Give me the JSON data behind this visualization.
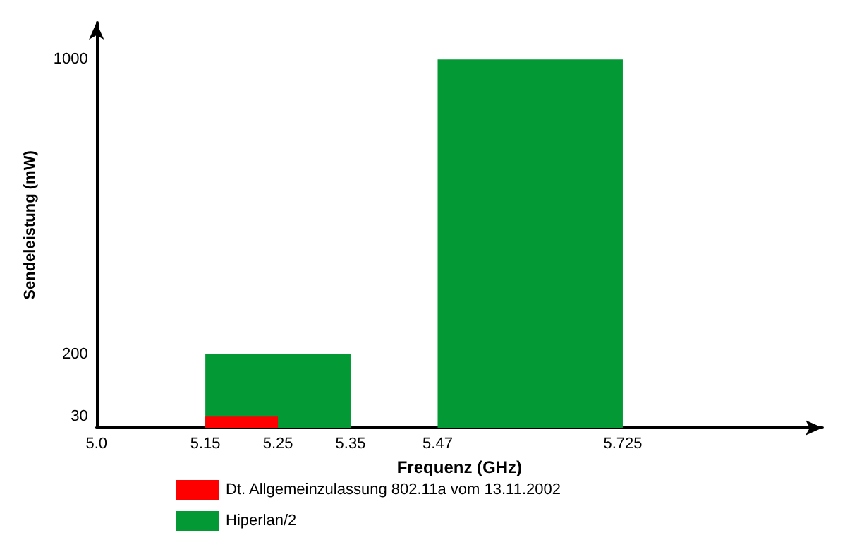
{
  "chart_data": {
    "type": "area",
    "xlabel": "Frequenz (GHz)",
    "ylabel": "Sendeleistung (mW)",
    "series": [
      {
        "name": "Dt. Allgemeinzulassung 802.11a vom 13.11.2002",
        "color": "#ff0000",
        "x": [
          5.15,
          5.15,
          5.25,
          5.25
        ],
        "values": [
          0,
          30,
          30,
          0
        ]
      },
      {
        "name": "Hiperlan/2",
        "color": "#039935",
        "x": [
          5.15,
          5.15,
          5.35,
          5.35,
          5.47,
          5.47,
          5.725,
          5.725
        ],
        "values": [
          0,
          200,
          200,
          0,
          0,
          1000,
          1000,
          0
        ]
      }
    ],
    "xlim": [
      5.0,
      6.0
    ],
    "xticks": [
      {
        "value": 5.0,
        "label": "5.0"
      },
      5.15,
      5.25,
      5.35,
      5.47,
      5.725
    ],
    "ylim": [
      0,
      1100
    ],
    "yticks": [
      30,
      200,
      1000
    ],
    "grid": false,
    "legend": "bottom",
    "marker": "none"
  }
}
